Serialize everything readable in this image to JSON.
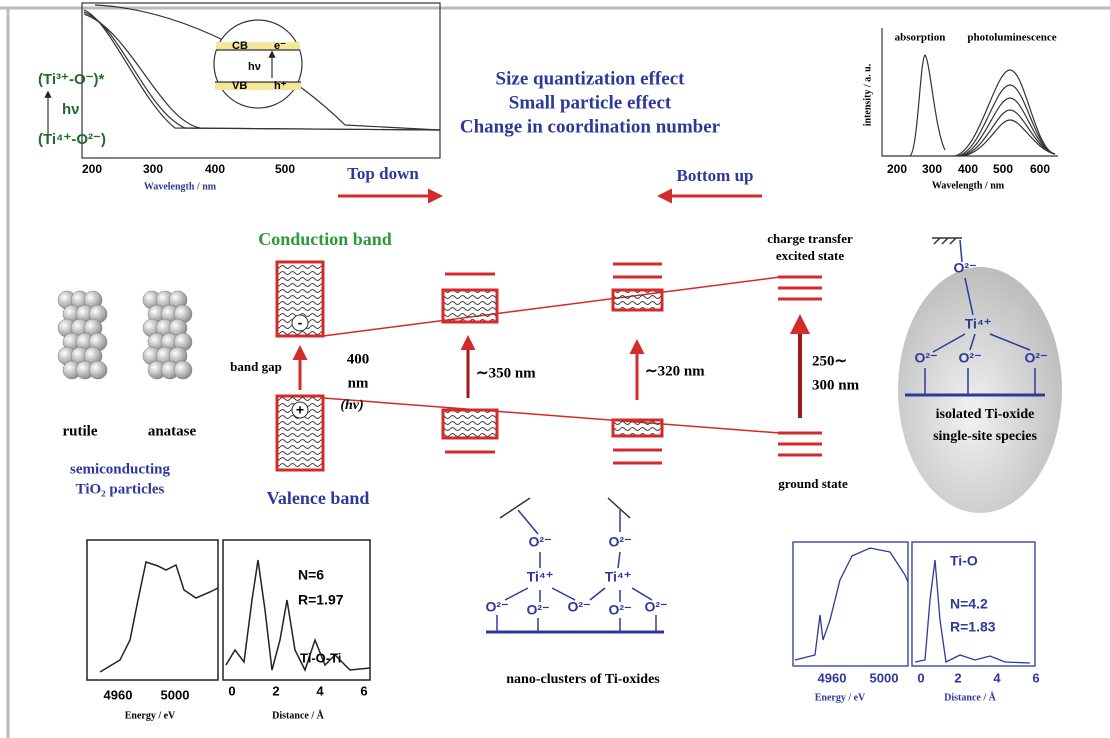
{
  "header": {
    "lines": [
      "Size quantization effect",
      "Small particle effect",
      "Change in coordination number"
    ],
    "top_down": "Top down",
    "bottom_up": "Bottom up"
  },
  "band_diagram": {
    "conduction_band": "Conduction band",
    "valence_band": "Valence band",
    "band_gap": "band gap",
    "electron": "-",
    "hole": "+",
    "gap_wavelength": [
      "400",
      "nm",
      "(hv)"
    ],
    "transitions": [
      "∼350 nm",
      "∼320 nm"
    ],
    "site_transition": [
      "250∼",
      "300 nm"
    ],
    "excited_state": [
      "charge transfer",
      "excited state"
    ],
    "ground_state": "ground state"
  },
  "particles": {
    "rutile": "rutile",
    "anatase": "anatase",
    "caption": [
      "semiconducting",
      "TiO₂ particles"
    ]
  },
  "absorption_plot": {
    "states": [
      "(Ti³⁺-O⁻)*",
      "hν",
      "(Ti⁴⁺-O²⁻)"
    ],
    "inset": [
      "CB",
      "e⁻",
      "hν",
      "VB",
      "h⁺"
    ],
    "ticks": [
      "200",
      "300",
      "400",
      "500"
    ],
    "x_label": "Wavelength / nm"
  },
  "emission_plot": {
    "labels": [
      "absorption",
      "photoluminescence"
    ],
    "y_label": "intensity / a. u.",
    "ticks": [
      "200",
      "300",
      "400",
      "500",
      "600"
    ],
    "x_label": "Wavelength / nm"
  },
  "isolated_site": {
    "ions": [
      "O²⁻",
      "Ti⁴⁺",
      "O²⁻",
      "O²⁻",
      "O²⁻"
    ],
    "caption": [
      "isolated Ti-oxide",
      "single-site species"
    ]
  },
  "nano_cluster": {
    "ions": [
      "O²⁻",
      "O²⁻",
      "Ti⁴⁺",
      "Ti⁴⁺",
      "O²⁻",
      "O²⁻",
      "O²⁻",
      "O²⁻",
      "O²⁻"
    ],
    "caption": "nano-clusters of Ti-oxides"
  },
  "xafs_bulk": {
    "energy_ticks": [
      "4960",
      "5000"
    ],
    "energy_label": "Energy / eV",
    "distance_ticks": [
      "0",
      "2",
      "4",
      "6"
    ],
    "distance_label": "Distance / Å",
    "fit": [
      "N=6",
      "R=1.97",
      "Ti-O-Ti"
    ]
  },
  "xafs_site": {
    "energy_ticks": [
      "4960",
      "5000"
    ],
    "energy_label": "Energy / eV",
    "distance_ticks": [
      "0",
      "2",
      "4",
      "6"
    ],
    "distance_label": "Distance / Å",
    "fit": [
      "Ti-O",
      "N=4.2",
      "R=1.83"
    ]
  }
}
